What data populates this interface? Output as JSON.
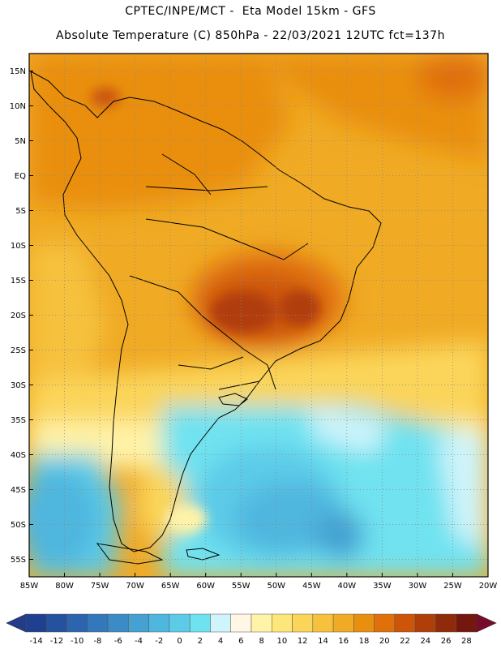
{
  "header": {
    "title_line1": "CPTEC/INPE/MCT -  Eta Model 15km - GFS",
    "title_line2": "Absolute Temperature (C) 850hPa - 22/03/2021 12UTC fct=137h"
  },
  "map": {
    "lat_labels": [
      "15N",
      "10N",
      "5N",
      "EQ",
      "5S",
      "10S",
      "15S",
      "20S",
      "25S",
      "30S",
      "35S",
      "40S",
      "45S",
      "50S",
      "55S"
    ],
    "lon_labels": [
      "85W",
      "80W",
      "75W",
      "70W",
      "65W",
      "60W",
      "55W",
      "50W",
      "45W",
      "40W",
      "35W",
      "30W",
      "25W",
      "20W"
    ],
    "lon_range": [
      -85,
      -20
    ],
    "lat_range": [
      -57.5,
      17.5
    ],
    "gridlines": "dotted"
  },
  "colorbar": {
    "unit": "C",
    "labels": [
      "-14",
      "-12",
      "-10",
      "-8",
      "-6",
      "-4",
      "-2",
      "0",
      "2",
      "4",
      "6",
      "8",
      "10",
      "12",
      "14",
      "16",
      "18",
      "20",
      "22",
      "24",
      "26",
      "28"
    ],
    "colors": [
      "#1f3f8f",
      "#25519e",
      "#2c64ae",
      "#3378ba",
      "#3b8cc6",
      "#44a1d2",
      "#4fb6de",
      "#5ccbe8",
      "#6fe2f0",
      "#cff4fb",
      "#fff7e3",
      "#fff3a8",
      "#fde67a",
      "#fbd55a",
      "#f6c13c",
      "#f0aa24",
      "#e98f10",
      "#e0700a",
      "#cc5508",
      "#b03e08",
      "#8f2b0a",
      "#74170e"
    ],
    "under_color": "#243a8a",
    "over_color": "#7a0a2a"
  }
}
